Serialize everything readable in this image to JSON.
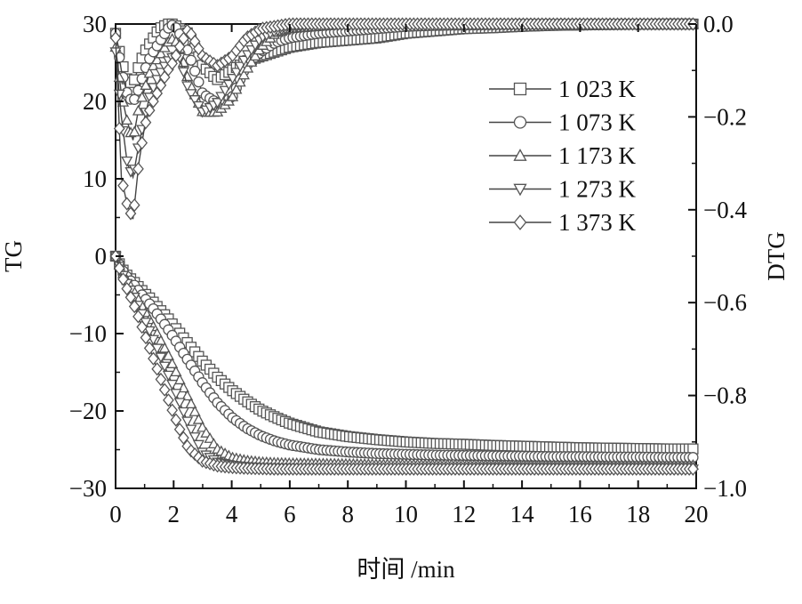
{
  "chart_data": {
    "type": "line",
    "title": "",
    "xlabel": "时间 /min",
    "ylabel": "TG",
    "y2label": "DTG",
    "xlim": [
      0,
      20
    ],
    "ylim": [
      -30,
      30
    ],
    "y2lim": [
      -1.0,
      0.0
    ],
    "x_ticks": [
      "0",
      "2",
      "4",
      "6",
      "8",
      "10",
      "12",
      "14",
      "16",
      "18",
      "20"
    ],
    "y_ticks": [
      "30",
      "20",
      "10",
      "0",
      "−10",
      "−20",
      "−30"
    ],
    "y2_ticks": [
      "0.0",
      "−0.2",
      "−0.4",
      "−0.6",
      "−0.8",
      "−1.0"
    ],
    "legend_position": "top-right",
    "grid": false,
    "x": [
      0,
      0.2,
      0.4,
      0.6,
      0.8,
      1,
      1.2,
      1.5,
      1.8,
      2,
      2.2,
      2.5,
      3,
      3.5,
      4,
      4.5,
      5,
      5.5,
      6,
      7,
      8,
      9,
      10,
      11,
      12,
      13,
      14,
      15,
      16,
      17,
      18,
      19,
      20
    ],
    "series": [
      {
        "name": "1 023 K",
        "marker": "square",
        "tg": [
          0,
          -1.5,
          -2.5,
          -3.2,
          -4.0,
          -4.8,
          -5.5,
          -6.8,
          -8.0,
          -9.0,
          -9.9,
          -11.3,
          -13.6,
          -15.6,
          -17.3,
          -18.7,
          -19.9,
          -20.8,
          -21.6,
          -22.7,
          -23.3,
          -23.7,
          -24.0,
          -24.2,
          -24.3,
          -24.45,
          -24.55,
          -24.65,
          -24.75,
          -24.8,
          -24.85,
          -24.9,
          -24.9
        ],
        "dtg": [
          -0.02,
          -0.08,
          -0.12,
          -0.13,
          -0.09,
          -0.06,
          -0.04,
          -0.01,
          0.0,
          0.0,
          -0.01,
          -0.02,
          -0.09,
          -0.12,
          -0.1,
          -0.08,
          -0.07,
          -0.06,
          -0.05,
          -0.04,
          -0.035,
          -0.03,
          -0.02,
          -0.015,
          -0.01,
          -0.008,
          -0.005,
          -0.003,
          -0.002,
          -0.001,
          -0.0005,
          0.0,
          0.0
        ]
      },
      {
        "name": "1 073 K",
        "marker": "circle",
        "tg": [
          0,
          -1.6,
          -2.7,
          -3.5,
          -4.5,
          -5.4,
          -6.3,
          -7.8,
          -9.4,
          -10.5,
          -11.7,
          -13.5,
          -16.4,
          -18.9,
          -20.8,
          -22.2,
          -23.2,
          -23.9,
          -24.4,
          -25.0,
          -25.3,
          -25.5,
          -25.6,
          -25.7,
          -25.75,
          -25.8,
          -25.85,
          -25.9,
          -25.9,
          -25.95,
          -25.95,
          -26.0,
          -26.0
        ],
        "dtg": [
          -0.02,
          -0.1,
          -0.15,
          -0.17,
          -0.14,
          -0.1,
          -0.07,
          -0.04,
          -0.01,
          0.0,
          -0.02,
          -0.06,
          -0.15,
          -0.17,
          -0.16,
          -0.09,
          -0.06,
          -0.04,
          -0.03,
          -0.02,
          -0.015,
          -0.01,
          -0.005,
          -0.003,
          -0.002,
          -0.001,
          0.0,
          0.0,
          0.0,
          0.0,
          0.0,
          0.0,
          0.0
        ]
      },
      {
        "name": "1 173 K",
        "marker": "triangle-up",
        "tg": [
          0,
          -1.8,
          -3.2,
          -4.3,
          -5.7,
          -7.0,
          -8.4,
          -10.5,
          -12.7,
          -14.3,
          -15.9,
          -18.3,
          -22.2,
          -24.9,
          -26.0,
          -26.4,
          -26.6,
          -26.7,
          -26.75,
          -26.8,
          -26.85,
          -26.9,
          -26.9,
          -26.95,
          -26.95,
          -27.0,
          -27.0,
          -27.0,
          -27.0,
          -27.0,
          -27.0,
          -27.0,
          -27.0
        ],
        "dtg": [
          -0.05,
          -0.15,
          -0.21,
          -0.25,
          -0.18,
          -0.14,
          -0.1,
          -0.07,
          -0.04,
          -0.03,
          -0.05,
          -0.12,
          -0.19,
          -0.19,
          -0.16,
          -0.1,
          -0.05,
          -0.02,
          -0.01,
          -0.005,
          0.0,
          0.0,
          0.0,
          0.0,
          0.0,
          0.0,
          0.0,
          0.0,
          0.0,
          0.0,
          0.0,
          0.0,
          0.0
        ]
      },
      {
        "name": "1 273 K",
        "marker": "triangle-down",
        "tg": [
          0,
          -2.0,
          -3.6,
          -4.9,
          -6.5,
          -8.2,
          -9.9,
          -12.5,
          -15.2,
          -17.0,
          -18.8,
          -21.6,
          -25.4,
          -26.6,
          -27.0,
          -27.2,
          -27.3,
          -27.35,
          -27.4,
          -27.45,
          -27.5,
          -27.5,
          -27.5,
          -27.5,
          -27.5,
          -27.5,
          -27.5,
          -27.5,
          -27.5,
          -27.5,
          -27.5,
          -27.5,
          -27.5
        ],
        "dtg": [
          -0.06,
          -0.2,
          -0.3,
          -0.33,
          -0.26,
          -0.2,
          -0.15,
          -0.11,
          -0.08,
          -0.07,
          -0.07,
          -0.14,
          -0.19,
          -0.17,
          -0.12,
          -0.07,
          -0.03,
          -0.015,
          -0.008,
          -0.003,
          0.0,
          0.0,
          0.0,
          0.0,
          0.0,
          0.0,
          0.0,
          0.0,
          0.0,
          0.0,
          0.0,
          0.0,
          0.0
        ]
      },
      {
        "name": "1 373 K",
        "marker": "diamond",
        "tg": [
          0,
          -2.4,
          -4.3,
          -6.0,
          -8.0,
          -10.1,
          -12.2,
          -15.3,
          -18.4,
          -20.4,
          -22.3,
          -24.8,
          -26.5,
          -27.1,
          -27.3,
          -27.4,
          -27.45,
          -27.5,
          -27.5,
          -27.5,
          -27.5,
          -27.5,
          -27.5,
          -27.5,
          -27.5,
          -27.5,
          -27.5,
          -27.5,
          -27.5,
          -27.5,
          -27.5,
          -27.5,
          -27.5
        ],
        "dtg": [
          -0.03,
          -0.33,
          -0.39,
          -0.42,
          -0.3,
          -0.22,
          -0.18,
          -0.14,
          -0.1,
          -0.08,
          -0.05,
          -0.01,
          -0.07,
          -0.09,
          -0.07,
          -0.03,
          -0.01,
          -0.005,
          0.0,
          0.0,
          0.0,
          0.0,
          0.0,
          0.0,
          0.0,
          0.0,
          0.0,
          0.0,
          0.0,
          0.0,
          0.0,
          0.0,
          0.0
        ]
      }
    ]
  },
  "colors": {
    "line": "#444444",
    "axis": "#111111",
    "marker_stroke": "#555555",
    "marker_fill": "#ffffff"
  }
}
